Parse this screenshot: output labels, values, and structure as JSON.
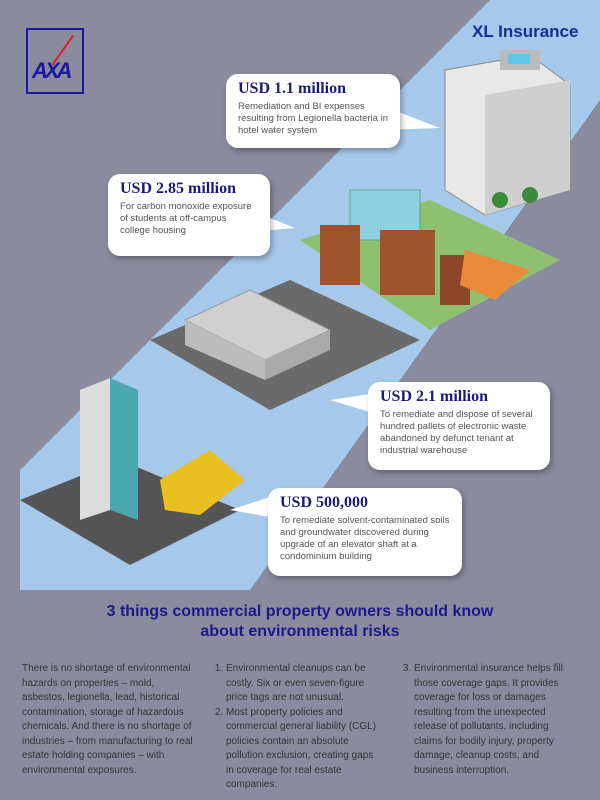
{
  "brand": {
    "logo_text": "AXA",
    "partner": "XL Insurance",
    "colors": {
      "background": "#8a8b9e",
      "band": "#a6c8ea",
      "accent": "#1a1a8c",
      "logo_red": "#e0202a"
    }
  },
  "cases": [
    {
      "amount": "USD 1.1 million",
      "description": "Remediation and BI expenses resulting from Legionella bacteria in hotel water system"
    },
    {
      "amount": "USD 2.85 million",
      "description": "For carbon monoxide exposure of students at off-campus college housing"
    },
    {
      "amount": "USD 2.1 million",
      "description": "To remediate and dispose of several hundred pallets of electronic waste abandoned by defunct tenant at industrial warehouse"
    },
    {
      "amount": "USD 500,000",
      "description": "To remediate solvent-contaminated soils and groundwater discovered during upgrade of an elevator shaft at a condominium building"
    }
  ],
  "title_line1": "3 things commercial property owners should know",
  "title_line2": "about environmental risks",
  "intro": "There is no shortage of environmental hazards on properties – mold, asbestos, legionella, lead, historical contamination, storage of hazardous chemicals. And there is no shortage of industries – from manufacturing to real estate holding companies – with environmental exposures.",
  "points": [
    "Environmental cleanups can be costly. Six or even seven-figure price tags are not unusual.",
    "Most property policies and commercial general liability (CGL) policies contain an absolute pollution exclusion, creating gaps in coverage for real estate companies.",
    "Environmental insurance helps fill those coverage gaps. It provides coverage for loss or damages resulting from the unexpected release of pollutants, including claims for bodily injury, property damage, cleanup costs, and business interruption."
  ]
}
